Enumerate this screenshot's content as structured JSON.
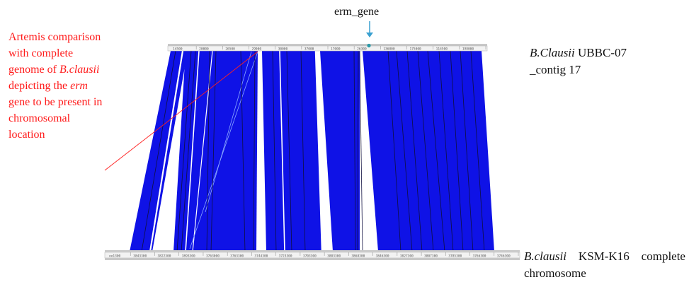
{
  "annotation": {
    "lines": [
      [
        "Artemis comparison"
      ],
      [
        "with complete"
      ],
      [
        "genome of ",
        {
          "i": "B.clausii"
        }
      ],
      [
        "depicting the ",
        {
          "i": "erm"
        }
      ],
      [
        "gene to be present in"
      ],
      [
        "chromosomal"
      ],
      [
        "location"
      ]
    ],
    "color": "#ff1a1a"
  },
  "top_genome": {
    "species": "B.Clausii",
    "strain": "UBBC-07",
    "contig": "_contig 17",
    "ticks": [
      "14500",
      "20000",
      "26500",
      "29000",
      "30000",
      "37000",
      "17000",
      "26300",
      "136800",
      "175000",
      "114500",
      "198000"
    ]
  },
  "bottom_genome": {
    "species": "B.clausii",
    "rest1": "KSM-K16",
    "rest2": "complete",
    "line2": "chromosome",
    "ticks": [
      "ee1300",
      "3843300",
      "3822300",
      "3893300",
      "3763000",
      "3763300",
      "3744300",
      "3723300",
      "3703300",
      "3883300",
      "3868300",
      "3846300",
      "3827300",
      "3807300",
      "3785300",
      "3766300",
      "3746300"
    ]
  },
  "marker": {
    "label": "erm_gene",
    "color": "#3aa0d0"
  },
  "colors": {
    "match_blue": "#0f12e6",
    "annotation_red": "#ff2020"
  }
}
